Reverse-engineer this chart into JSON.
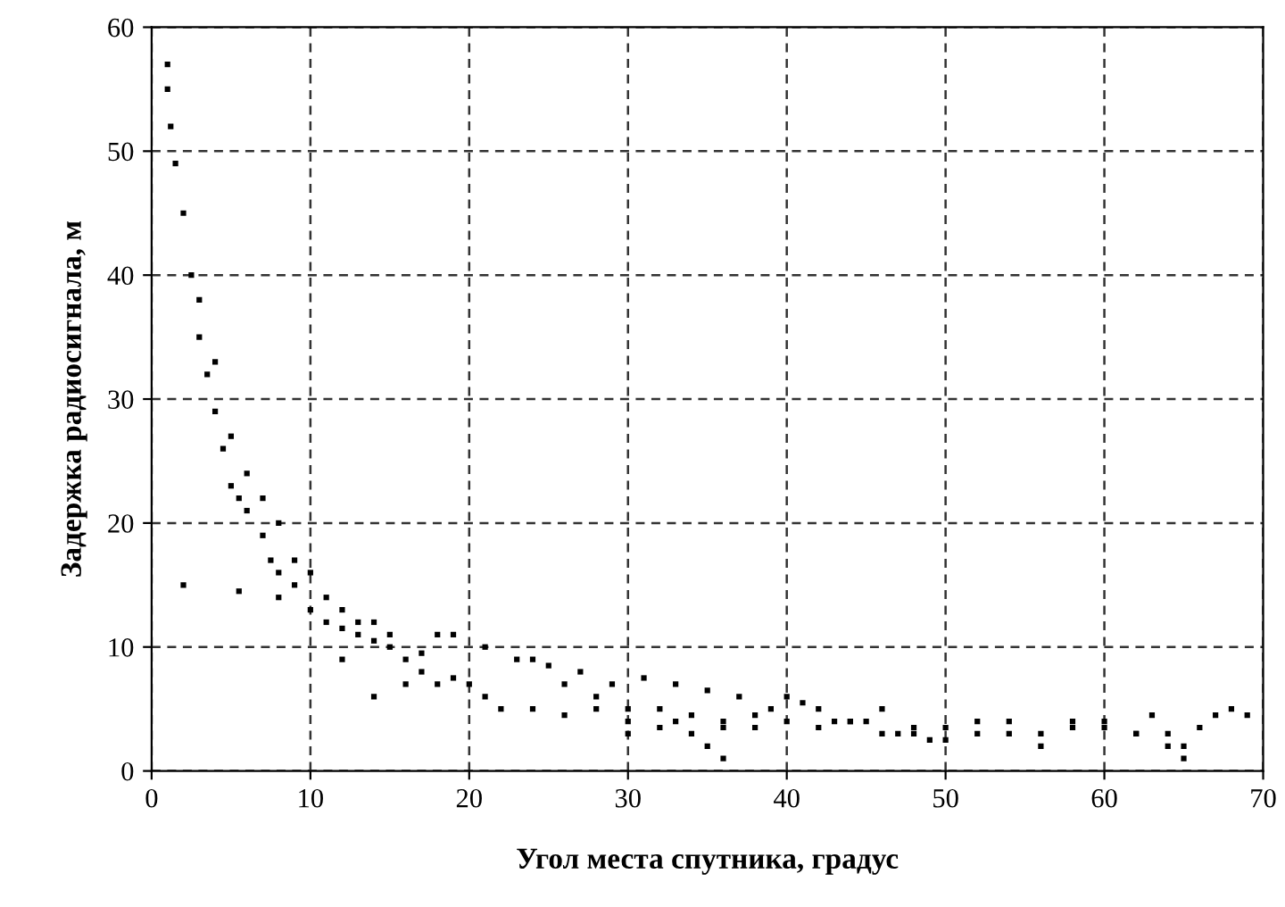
{
  "chart_data": {
    "type": "scatter",
    "xlabel": "Угол места спутника, градус",
    "ylabel": "Задержка радиосигнала, м",
    "xlim": [
      0,
      70
    ],
    "ylim": [
      0,
      60
    ],
    "xticks": [
      0,
      10,
      20,
      30,
      40,
      50,
      60,
      70
    ],
    "yticks": [
      0,
      10,
      20,
      30,
      40,
      50,
      60
    ],
    "grid": true,
    "marker": "square",
    "legend": false,
    "series": [
      {
        "color": "#000000",
        "x": [
          1,
          1,
          1.2,
          1.5,
          2,
          2,
          2.5,
          3,
          3,
          3.5,
          4,
          4,
          4.5,
          5,
          5,
          5.5,
          5.5,
          6,
          6,
          7,
          7,
          7.5,
          8,
          8,
          8,
          9,
          9,
          10,
          10,
          11,
          11,
          12,
          12,
          12,
          13,
          13,
          14,
          14,
          14,
          15,
          15,
          16,
          16,
          17,
          17,
          18,
          18,
          19,
          19,
          20,
          21,
          21,
          22,
          23,
          24,
          24,
          25,
          26,
          26,
          27,
          28,
          28,
          29,
          30,
          30,
          30,
          31,
          32,
          32,
          33,
          33,
          34,
          34,
          35,
          35,
          36,
          36,
          36,
          37,
          38,
          38,
          39,
          40,
          40,
          41,
          42,
          42,
          43,
          44,
          44,
          45,
          46,
          46,
          47,
          48,
          48,
          49,
          50,
          50,
          52,
          52,
          54,
          54,
          56,
          56,
          58,
          58,
          60,
          60,
          62,
          62,
          63,
          64,
          64,
          65,
          65,
          66,
          67,
          68,
          69
        ],
        "values": [
          55,
          57,
          52,
          49,
          45,
          15,
          40,
          35,
          38,
          32,
          29,
          33,
          26,
          23,
          27,
          22,
          14.5,
          21,
          24,
          19,
          22,
          17,
          16,
          20,
          14,
          15,
          17,
          13,
          16,
          12,
          14,
          11.5,
          13,
          9,
          11,
          12,
          10.5,
          12,
          6,
          10,
          11,
          9,
          7,
          9.5,
          8,
          11,
          7,
          11,
          7.5,
          7,
          10,
          6,
          5,
          9,
          5,
          9,
          8.5,
          4.5,
          7,
          8,
          5,
          6,
          7,
          4,
          5,
          3,
          7.5,
          3.5,
          5,
          7,
          4,
          3,
          4.5,
          6.5,
          2,
          1,
          4,
          3.5,
          6,
          3.5,
          4.5,
          5,
          4,
          6,
          5.5,
          3.5,
          5,
          4,
          4,
          4,
          4,
          3,
          5,
          3,
          3.5,
          3,
          2.5,
          3.5,
          2.5,
          3,
          4,
          4,
          3,
          3,
          2,
          4,
          3.5,
          3.5,
          4,
          3,
          3,
          4.5,
          2,
          3,
          1,
          2,
          3.5,
          4.5,
          5,
          4.5
        ]
      }
    ]
  }
}
